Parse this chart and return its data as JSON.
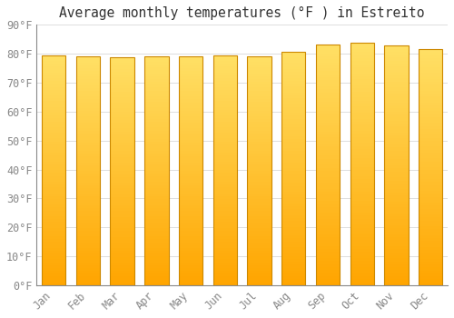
{
  "title": "Average monthly temperatures (°F ) in Estreito",
  "months": [
    "Jan",
    "Feb",
    "Mar",
    "Apr",
    "May",
    "Jun",
    "Jul",
    "Aug",
    "Sep",
    "Oct",
    "Nov",
    "Dec"
  ],
  "values": [
    79.5,
    79.0,
    78.8,
    79.2,
    79.0,
    79.5,
    79.2,
    80.8,
    83.3,
    83.7,
    82.8,
    81.5
  ],
  "bar_color_bottom": "#FFA500",
  "bar_color_top": "#FFE066",
  "bar_edge_color": "#CC8800",
  "ylim": [
    0,
    90
  ],
  "yticks": [
    0,
    10,
    20,
    30,
    40,
    50,
    60,
    70,
    80,
    90
  ],
  "ytick_labels": [
    "0°F",
    "10°F",
    "20°F",
    "30°F",
    "40°F",
    "50°F",
    "60°F",
    "70°F",
    "80°F",
    "90°F"
  ],
  "background_color": "#FFFFFF",
  "grid_color": "#DDDDDD",
  "title_fontsize": 10.5,
  "tick_fontsize": 8.5,
  "bar_width": 0.7,
  "fig_width": 5.0,
  "fig_height": 3.5,
  "dpi": 100
}
